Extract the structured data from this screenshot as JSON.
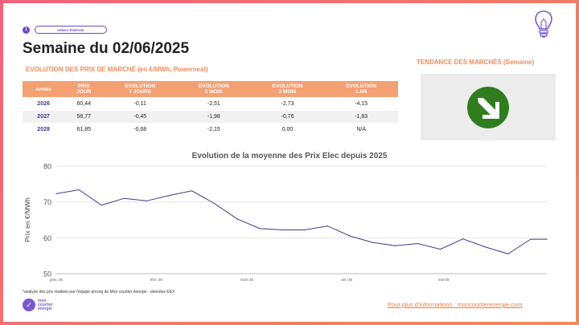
{
  "header": {
    "slide_number": "1",
    "tag": "HEBDO ÉNERGIE",
    "title": "Semaine du 02/06/2025",
    "subtitle": "EVOLUTION DES PRIX DE MARCHÉ (en €/MWh, Powernext)",
    "trend_title": "TENDANCE DES MARCHÉS (Semaine)"
  },
  "trend": {
    "icon": "down-right-arrow-icon",
    "color": "#2f7d1f"
  },
  "table": {
    "headers": [
      "Année",
      "PRIX\nJOUR",
      "EVOLUTION\n7 JOURS",
      "EVOLUTION\n1 MOIS",
      "EVOLUTION\n3 MOIS",
      "EVOLUTION\n1 AN"
    ],
    "rows": [
      [
        "2026",
        "60,44",
        "-0,11",
        "-2,51",
        "-2,73",
        "-4,15"
      ],
      [
        "2027",
        "58,77",
        "-0,45",
        "-1,98",
        "-0,76",
        "-1,83"
      ],
      [
        "2028",
        "61,85",
        "-0,68",
        "-2,15",
        "0,00",
        "N/A"
      ]
    ]
  },
  "chart_data": {
    "type": "line",
    "title": "Evolution de la moyenne des Prix Elec depuis 2025",
    "xlabel": "",
    "ylabel": "Prix en €/MWh",
    "ylim": [
      50,
      80
    ],
    "yticks": [
      50,
      60,
      70,
      80
    ],
    "xticks": [
      "janv.-25",
      "févr.-25",
      "mars-25",
      "avr.-25",
      "mai-25"
    ],
    "grid": true,
    "color": "#3b3b8f",
    "series": [
      {
        "x": [
          "2025-01-01",
          "2025-01-08",
          "2025-01-15",
          "2025-01-22",
          "2025-01-29",
          "2025-02-05",
          "2025-02-12",
          "2025-02-19",
          "2025-02-26",
          "2025-03-05",
          "2025-03-12",
          "2025-03-19",
          "2025-03-26",
          "2025-04-02",
          "2025-04-09",
          "2025-04-16",
          "2025-04-23",
          "2025-04-30",
          "2025-05-07",
          "2025-05-14",
          "2025-05-21",
          "2025-05-28",
          "2025-06-02"
        ],
        "values": [
          72.3,
          73.4,
          69.1,
          71.0,
          70.3,
          71.8,
          73.1,
          69.6,
          65.3,
          62.6,
          62.2,
          62.2,
          63.3,
          60.5,
          58.7,
          57.8,
          58.4,
          56.8,
          59.7,
          57.4,
          55.5,
          59.6,
          59.6
        ]
      }
    ]
  },
  "footer": {
    "footnote": "*analyse des prix réalisée par l'équipe pricing de Mon courtier énergie -  données EEX",
    "logo_text": "mon\ncourtier\nénergie",
    "info_link": "Pour plus d'informations : moncourtierenergie.com"
  }
}
